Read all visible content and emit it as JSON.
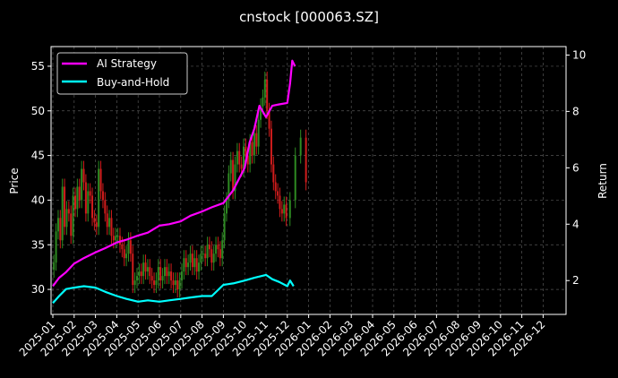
{
  "chart_data": {
    "type": "line",
    "title": "cnstock [000063.SZ]",
    "xlabel": "",
    "ylabel": "Price",
    "y2label": "Return",
    "ylim": [
      27.2,
      57.2
    ],
    "y2lim": [
      0.8,
      10.3
    ],
    "yticks": [
      "30",
      "35",
      "40",
      "45",
      "50",
      "55"
    ],
    "y2ticks": [
      "2",
      "4",
      "6",
      "8",
      "10"
    ],
    "x_tick_labels": [
      "2025-01",
      "2025-02",
      "2025-03",
      "2025-04",
      "2025-05",
      "2025-06",
      "2025-07",
      "2025-08",
      "2025-09",
      "2025-10",
      "2025-11",
      "2025-12",
      "2026-01",
      "2026-02",
      "2026-03",
      "2026-04",
      "2026-05",
      "2026-06",
      "2026-07",
      "2026-08",
      "2026-09",
      "2026-10",
      "2026-11",
      "2026-12"
    ],
    "x_start": "2025-01",
    "grid": true,
    "legend_position": "top-left",
    "background": "#000000",
    "candle_colors": {
      "up": "#2e8b22",
      "down": "#d01c1c"
    },
    "price_candles": {
      "name": "Price",
      "months": [
        "2025-01",
        "2025-02",
        "2025-03",
        "2025-04",
        "2025-05",
        "2025-06",
        "2025-07",
        "2025-08",
        "2025-09",
        "2025-10",
        "2025-11",
        "2025-12"
      ],
      "close": [
        [
          33.0,
          36.5,
          38.0,
          35.5,
          41.5,
          37.0,
          39.0,
          38.5,
          36.0,
          40.5
        ],
        [
          39.0,
          41.5,
          40.0,
          43.5,
          42.0,
          38.5,
          41.0,
          40.5,
          38.0,
          37.5
        ],
        [
          37.0,
          43.5,
          41.0,
          40.0,
          38.5,
          37.0,
          38.0,
          36.0,
          35.5,
          36.0
        ],
        [
          36.0,
          35.0,
          34.5,
          33.5,
          34.0,
          35.5,
          34.0,
          30.5,
          31.0,
          31.5
        ],
        [
          32.0,
          31.5,
          33.0,
          32.0,
          32.5,
          31.5,
          31.0,
          30.5,
          31.0,
          32.5
        ],
        [
          31.0,
          31.5,
          32.5,
          31.5,
          32.0,
          31.0,
          30.5,
          31.0,
          30.0,
          31.0
        ],
        [
          32.0,
          33.5,
          32.5,
          33.0,
          34.0,
          32.5,
          33.5,
          32.0,
          33.0,
          34.0
        ],
        [
          34.0,
          33.5,
          35.0,
          34.5,
          33.0,
          34.0,
          35.0,
          34.5,
          33.5,
          35.5
        ],
        [
          38.5,
          40.0,
          43.0,
          44.5,
          41.0,
          44.0,
          45.5,
          44.0,
          43.5,
          46.0
        ],
        [
          45.0,
          44.0,
          46.5,
          45.0,
          47.5,
          46.0,
          49.0,
          50.5,
          51.5,
          53.5
        ],
        [
          50.0,
          48.0,
          44.0,
          42.0,
          41.0,
          40.5,
          39.0,
          38.5,
          39.5,
          38.0
        ],
        [
          40.0,
          45.0,
          47.0,
          42.0
        ]
      ]
    },
    "series": [
      {
        "name": "AI Strategy",
        "color": "#ff00ff",
        "axis": "right",
        "x": [
          "2025-01-01",
          "2025-01-10",
          "2025-01-20",
          "2025-02-01",
          "2025-02-15",
          "2025-03-01",
          "2025-03-15",
          "2025-04-01",
          "2025-04-15",
          "2025-05-01",
          "2025-05-15",
          "2025-06-01",
          "2025-06-15",
          "2025-07-01",
          "2025-07-15",
          "2025-08-01",
          "2025-08-15",
          "2025-09-01",
          "2025-09-15",
          "2025-10-01",
          "2025-10-08",
          "2025-10-15",
          "2025-10-22",
          "2025-11-01",
          "2025-11-10",
          "2025-11-20",
          "2025-12-01",
          "2025-12-05",
          "2025-12-08",
          "2025-12-12"
        ],
        "values": [
          1.8,
          2.1,
          2.3,
          2.6,
          2.8,
          3.0,
          3.15,
          3.35,
          3.45,
          3.6,
          3.7,
          3.95,
          4.0,
          4.1,
          4.3,
          4.45,
          4.6,
          4.75,
          5.2,
          6.0,
          6.9,
          7.4,
          8.2,
          7.8,
          8.2,
          8.25,
          8.3,
          9.0,
          9.8,
          9.6
        ]
      },
      {
        "name": "Buy-and-Hold",
        "color": "#00ffff",
        "axis": "right",
        "x": [
          "2025-01-01",
          "2025-01-10",
          "2025-01-20",
          "2025-02-01",
          "2025-02-15",
          "2025-03-01",
          "2025-03-15",
          "2025-04-01",
          "2025-04-15",
          "2025-05-01",
          "2025-05-15",
          "2025-06-01",
          "2025-06-15",
          "2025-07-01",
          "2025-07-15",
          "2025-08-01",
          "2025-08-15",
          "2025-09-01",
          "2025-09-15",
          "2025-10-01",
          "2025-10-15",
          "2025-11-01",
          "2025-11-10",
          "2025-11-20",
          "2025-12-01",
          "2025-12-05",
          "2025-12-10"
        ],
        "values": [
          1.2,
          1.45,
          1.7,
          1.75,
          1.8,
          1.75,
          1.6,
          1.45,
          1.35,
          1.25,
          1.3,
          1.25,
          1.3,
          1.35,
          1.4,
          1.45,
          1.45,
          1.85,
          1.9,
          2.0,
          2.1,
          2.2,
          2.05,
          1.95,
          1.8,
          2.0,
          1.8
        ]
      }
    ]
  }
}
